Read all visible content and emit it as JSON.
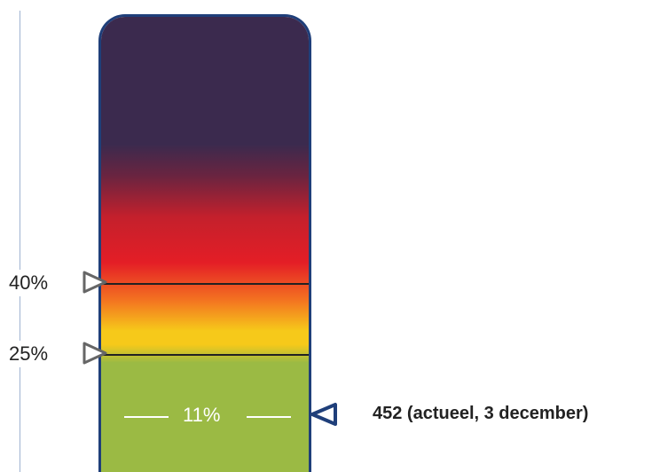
{
  "thresholds": [
    {
      "label": "40%",
      "value": 40
    },
    {
      "label": "25%",
      "value": 25
    }
  ],
  "current": {
    "percent_label": "11%",
    "value": 11,
    "text": "452 (actueel, 3 december)"
  },
  "colors": {
    "outline": "#1f3f7a",
    "top": "#3b2a4e",
    "red": "#e41e26",
    "orange": "#f37021",
    "yellow": "#f6c91a",
    "green": "#9bba44",
    "marker_current": "#1f3f7a",
    "marker_threshold": "#666666"
  }
}
